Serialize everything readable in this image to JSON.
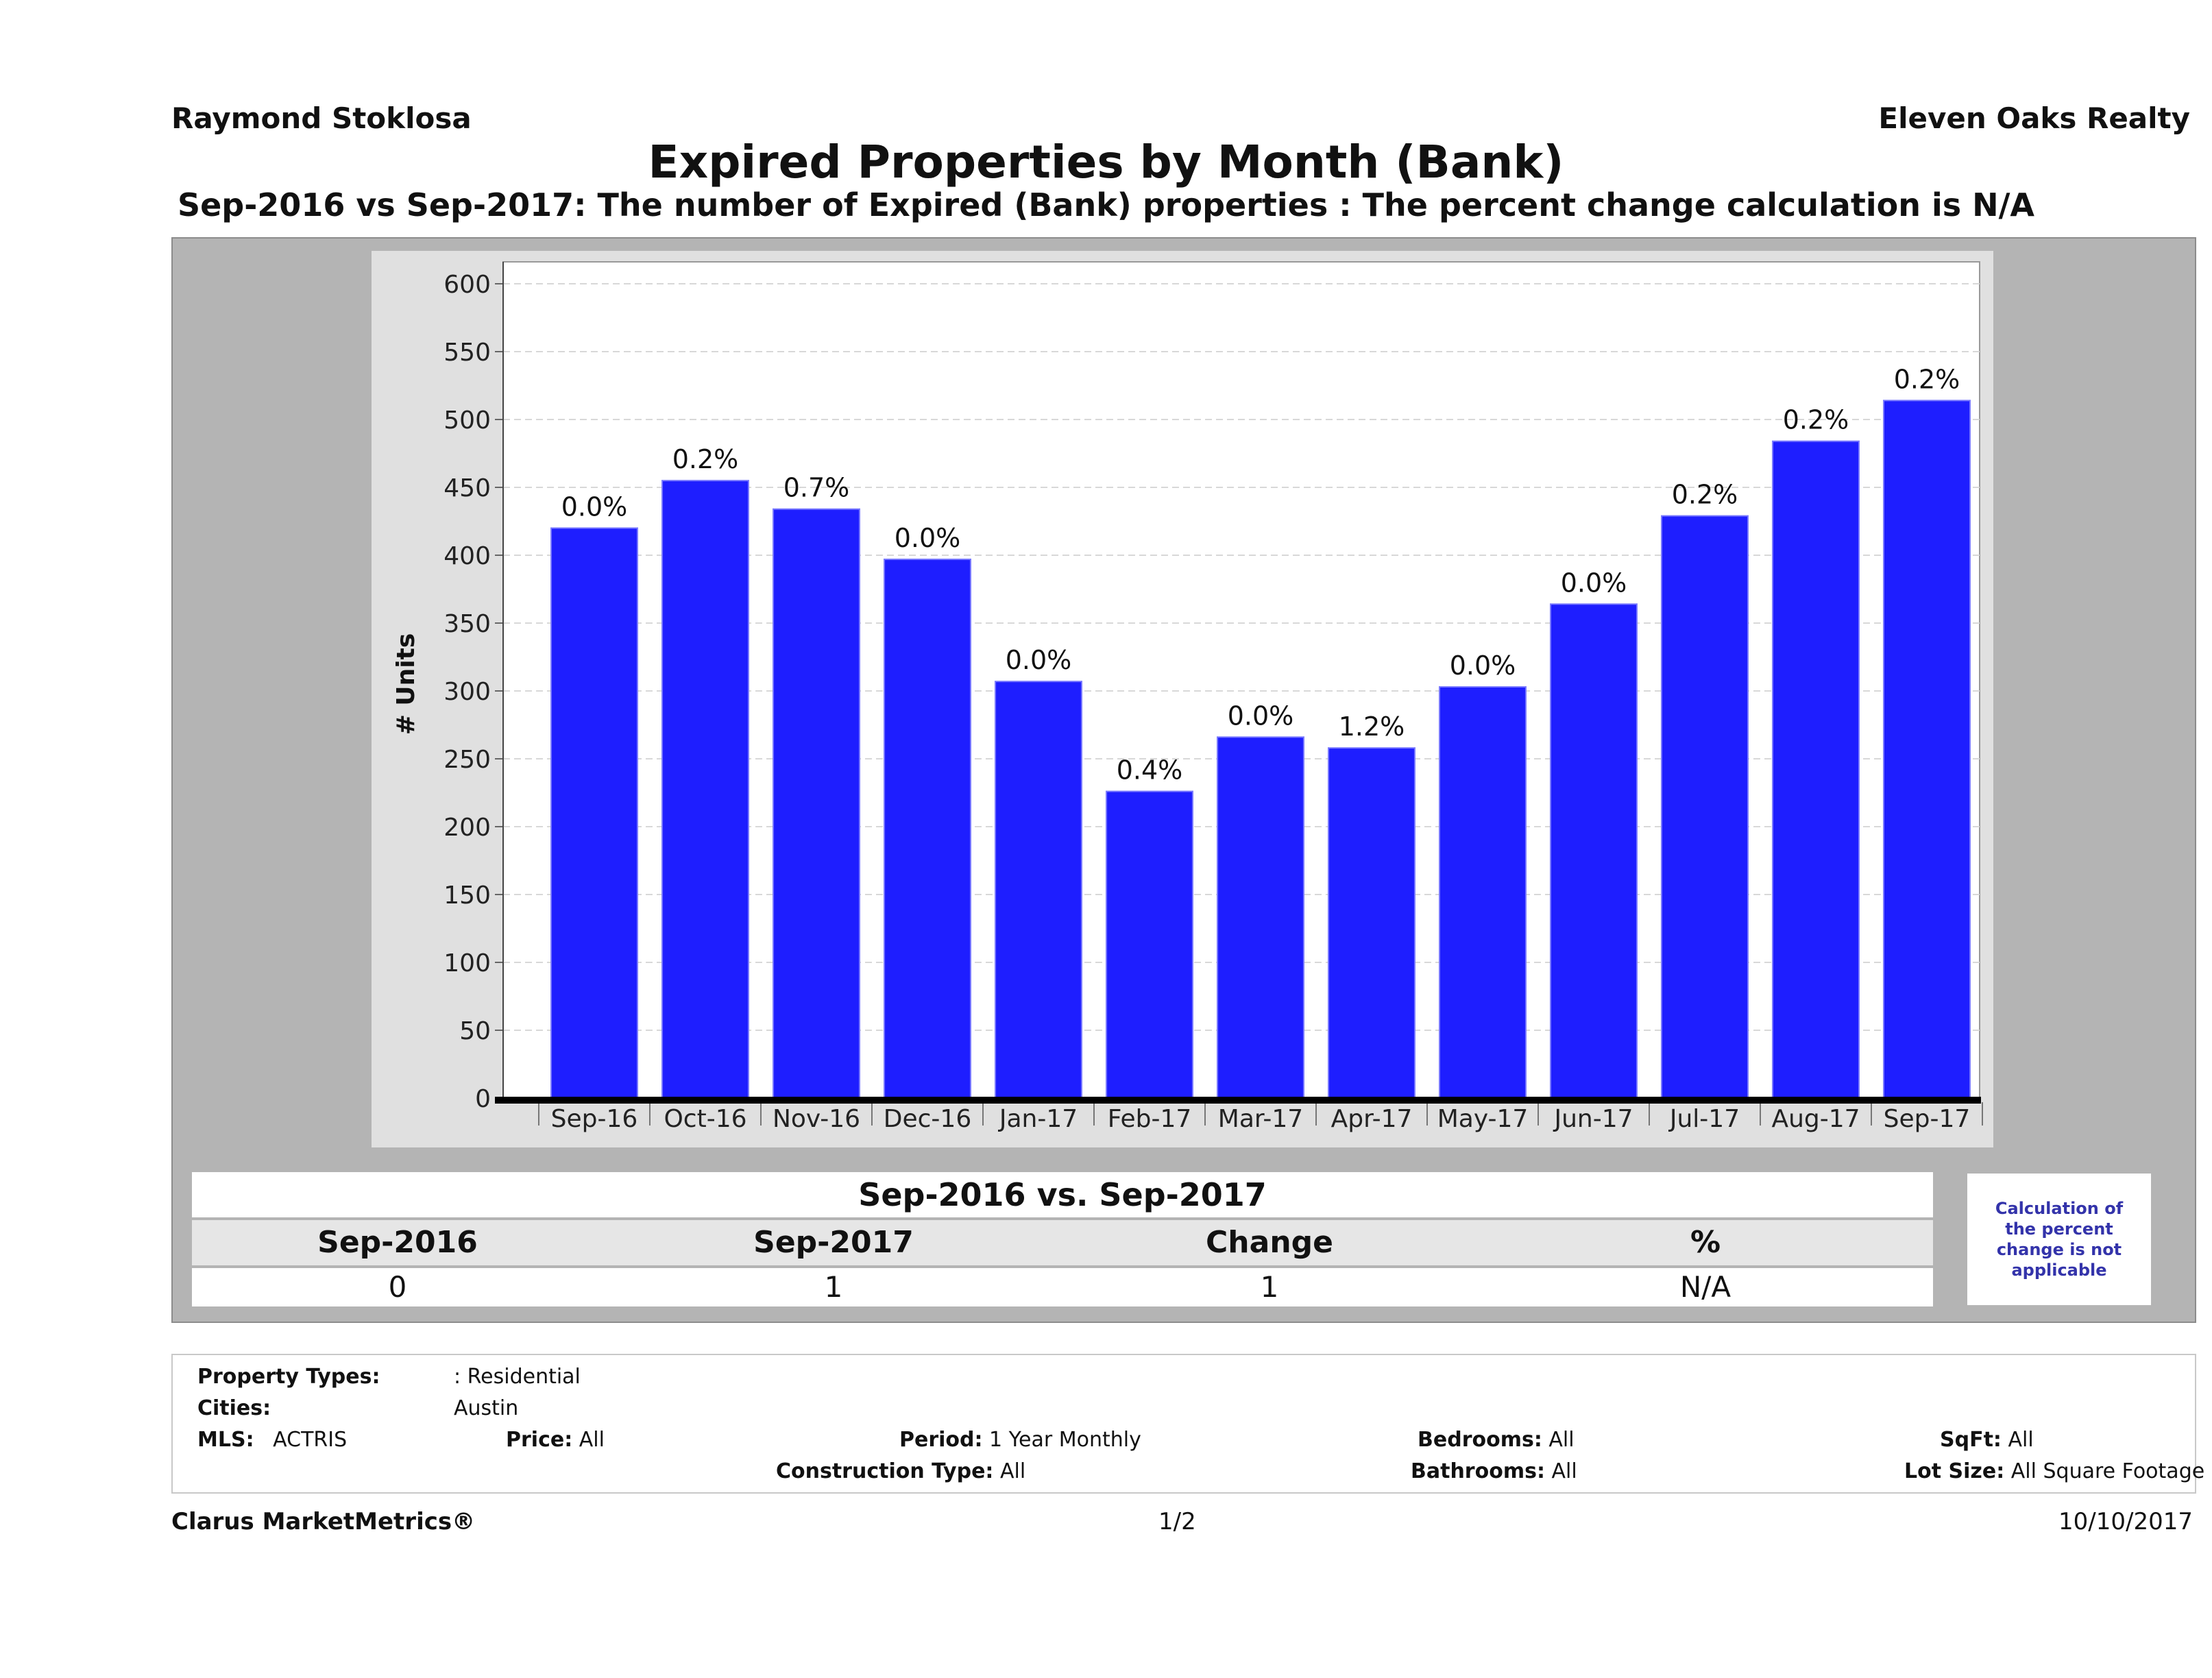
{
  "header": {
    "agent": "Raymond Stoklosa",
    "company": "Eleven Oaks Realty",
    "title": "Expired Properties by Month (Bank)",
    "subtitle": "Sep-2016 vs Sep-2017: The number of Expired (Bank)  properties :  The percent change calculation is N/A"
  },
  "chart_data": {
    "type": "bar",
    "title": "Expired Properties by Month (Bank)",
    "ylabel": "# Units",
    "xlabel": "",
    "ylim": [
      0,
      600
    ],
    "yticks": [
      0,
      50,
      100,
      150,
      200,
      250,
      300,
      350,
      400,
      450,
      500,
      550,
      600
    ],
    "grid": true,
    "categories": [
      "Sep-16",
      "Oct-16",
      "Nov-16",
      "Dec-16",
      "Jan-17",
      "Feb-17",
      "Mar-17",
      "Apr-17",
      "May-17",
      "Jun-17",
      "Jul-17",
      "Aug-17",
      "Sep-17"
    ],
    "values": [
      420,
      455,
      434,
      397,
      307,
      226,
      266,
      258,
      303,
      364,
      429,
      484,
      514
    ],
    "labels": [
      "0.0%",
      "0.2%",
      "0.7%",
      "0.0%",
      "0.0%",
      "0.4%",
      "0.0%",
      "1.2%",
      "0.0%",
      "0.0%",
      "0.2%",
      "0.2%",
      "0.2%"
    ],
    "bar_color": "#1e1eff"
  },
  "summary": {
    "heading": "Sep-2016 vs. Sep-2017",
    "columns": [
      "Sep-2016",
      "Sep-2017",
      "Change",
      "%"
    ],
    "values": [
      "0",
      "1",
      "1",
      "N/A"
    ],
    "note": "Calculation of the percent change is not applicable"
  },
  "criteria": {
    "property_types_label": "Property Types:",
    "property_types_value": ": Residential",
    "cities_label": "Cities:",
    "cities_value": "Austin",
    "mls_label": "MLS:",
    "mls_value": "ACTRIS",
    "price_label": "Price:",
    "price_value": "All",
    "period_label": "Period:",
    "period_value": "1 Year Monthly",
    "construction_label": "Construction Type:",
    "construction_value": "All",
    "bedrooms_label": "Bedrooms:",
    "bedrooms_value": "All",
    "bathrooms_label": "Bathrooms:",
    "bathrooms_value": "All",
    "sqft_label": "SqFt:",
    "sqft_value": "All",
    "lotsize_label": "Lot Size:",
    "lotsize_value": "All Square Footage"
  },
  "footer": {
    "brand": "Clarus MarketMetrics®",
    "page": "1/2",
    "date": "10/10/2017"
  }
}
